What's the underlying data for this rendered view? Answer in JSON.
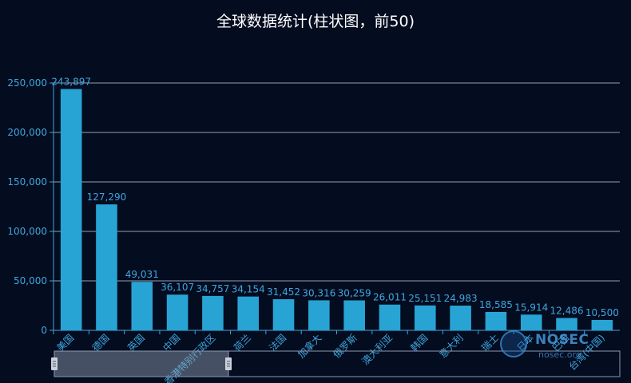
{
  "chart_data": {
    "type": "bar",
    "title": "全球数据统计(柱状图，前50)",
    "categories": [
      "美国",
      "德国",
      "英国",
      "中国",
      "香港特别行政区",
      "荷兰",
      "法国",
      "加拿大",
      "俄罗斯",
      "澳大利亚",
      "韩国",
      "意大利",
      "瑞士",
      "日本",
      "巴西",
      "台湾(中国)"
    ],
    "values": [
      243897,
      127290,
      49031,
      36107,
      34757,
      34154,
      31452,
      30316,
      30259,
      26011,
      25151,
      24983,
      18585,
      15914,
      12486,
      10500
    ],
    "data_labels": [
      "243,897",
      "127,290",
      "49,031",
      "36,107",
      "34,757",
      "34,154",
      "31,452",
      "30,316",
      "30,259",
      "26,011",
      "25,151",
      "24,983",
      "18,585",
      "15,914",
      "12,486",
      "10,500"
    ],
    "y_ticks": [
      "0",
      "50,000",
      "100,000",
      "150,000",
      "200,000",
      "250,000"
    ],
    "ylim": [
      0,
      250000
    ],
    "grid": true,
    "bar_color": "#28a4d4",
    "axis_color": "#3fa6dc"
  },
  "watermark": {
    "brand": "NOSEC",
    "url": "nosec.org"
  }
}
